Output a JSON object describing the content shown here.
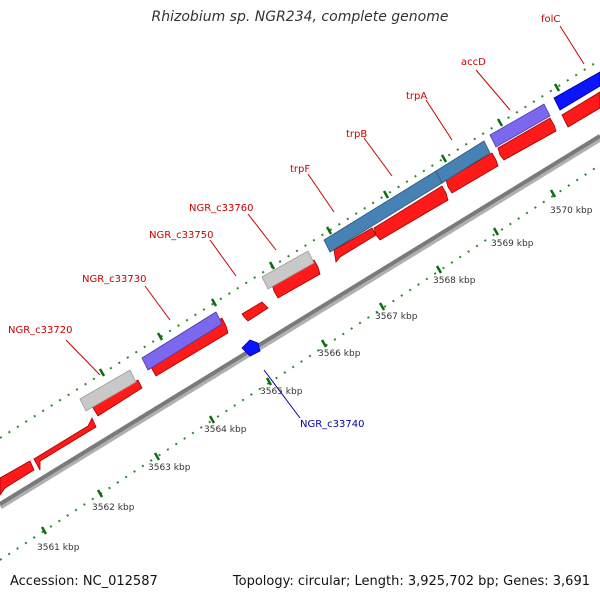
{
  "title": "Rhizobium sp. NGR234, complete genome",
  "accession_label": "Accession: NC_012587",
  "summary_label": "Topology: circular; Length: 3,925,702 bp; Genes: 3,691",
  "colors": {
    "forward_gene": "#ff1a1a",
    "small_gene": "#0a14ff",
    "purple_gene": "#7b68ee",
    "steelblue_gene": "#4682b4",
    "gray_gene": "#c8c8c8",
    "label_red": "#cc0000",
    "label_blue": "#0000aa",
    "tick_green": "#006400",
    "backbone": "#808080"
  },
  "scale_ticks": [
    "3561 kbp",
    "3562 kbp",
    "3563 kbp",
    "3564 kbp",
    "3565 kbp",
    "3566 kbp",
    "3567 kbp",
    "3568 kbp",
    "3569 kbp",
    "3570 kbp"
  ],
  "gene_labels": [
    {
      "text": "NGR_c33720",
      "color": "red"
    },
    {
      "text": "NGR_c33730",
      "color": "red"
    },
    {
      "text": "NGR_c33750",
      "color": "red"
    },
    {
      "text": "NGR_c33760",
      "color": "red"
    },
    {
      "text": "trpF",
      "color": "red"
    },
    {
      "text": "trpB",
      "color": "red"
    },
    {
      "text": "trpA",
      "color": "red"
    },
    {
      "text": "accD",
      "color": "red"
    },
    {
      "text": "folC",
      "color": "red"
    },
    {
      "text": "NGR_c33740",
      "color": "blue"
    }
  ]
}
